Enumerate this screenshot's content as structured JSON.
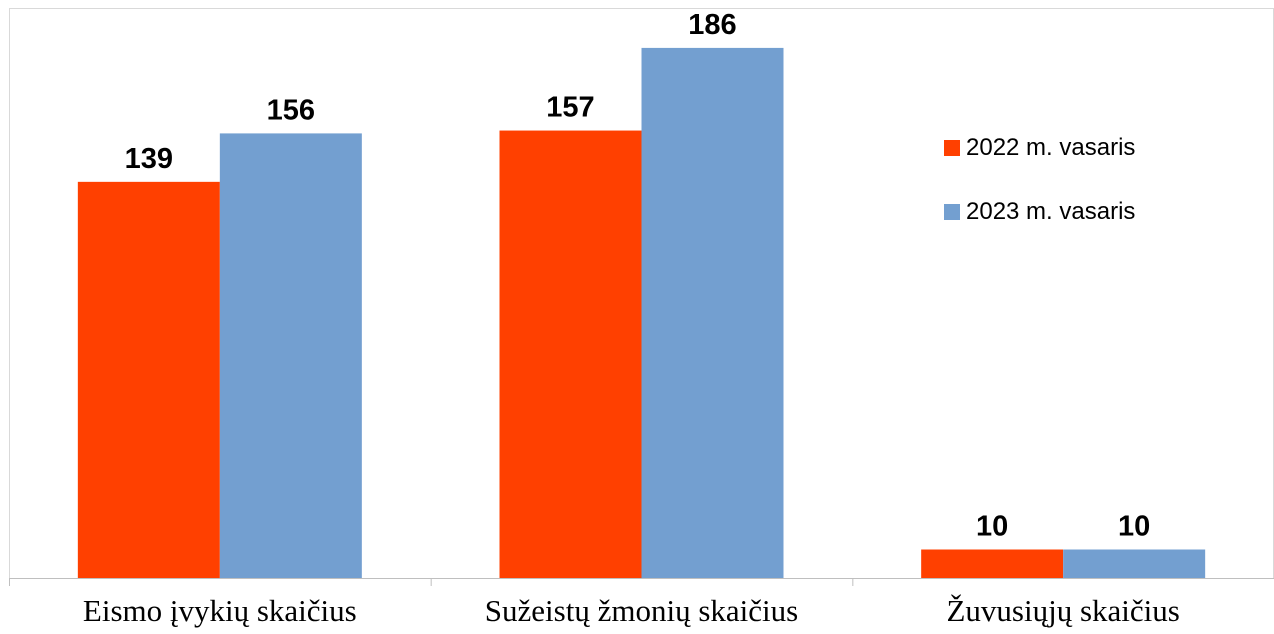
{
  "chart_data": {
    "type": "bar",
    "title": "",
    "xlabel": "",
    "ylabel": "",
    "categories": [
      "Eismo įvykių skaičius",
      "Sužeistų žmonių skaičius",
      "Žuvusiųjų skaičius"
    ],
    "series": [
      {
        "name": "2022 m. vasaris",
        "values": [
          139,
          157,
          10
        ],
        "color": "#ff4000"
      },
      {
        "name": "2023 m. vasaris",
        "values": [
          156,
          186,
          10
        ],
        "color": "#739fd0"
      }
    ],
    "ylim": [
      0,
      200
    ],
    "data_labels": true,
    "grid": false,
    "legend_position": "right"
  }
}
